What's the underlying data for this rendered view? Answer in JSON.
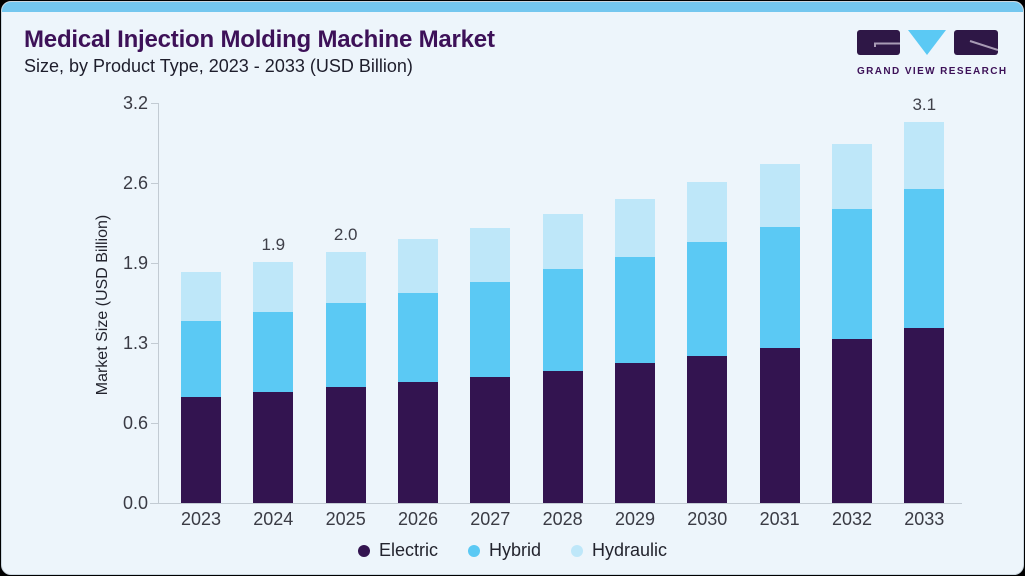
{
  "header": {
    "title": "Medical Injection Molding Machine Market",
    "subtitle": "Size, by Product Type, 2023 - 2033 (USD Billion)"
  },
  "logo": {
    "text": "GRAND VIEW RESEARCH",
    "icon": "gvr-logo-icon",
    "colors": {
      "dark": "#2E1746",
      "blue": "#5BC9F4",
      "line": "#A89BB5"
    }
  },
  "colors": {
    "accent_strip": "#74C7EF",
    "card_bg": "#EDF5FB",
    "axis": "#C2CBD3",
    "text": "#3A3B44"
  },
  "chart_data": {
    "type": "bar",
    "stacked": true,
    "title": "Medical Injection Molding Machine Market",
    "subtitle": "Size, by Product Type, 2023 - 2033 (USD Billion)",
    "xlabel": "",
    "ylabel": "Market Size (USD Billion)",
    "ylim": [
      0,
      3.2
    ],
    "grid": false,
    "legend_position": "bottom",
    "categories": [
      "2023",
      "2024",
      "2025",
      "2026",
      "2027",
      "2028",
      "2029",
      "2030",
      "2031",
      "2032",
      "2033"
    ],
    "series": [
      {
        "name": "Electric",
        "color": "#331450",
        "values": [
          0.85,
          0.89,
          0.93,
          0.97,
          1.01,
          1.06,
          1.12,
          1.18,
          1.24,
          1.31,
          1.4
        ]
      },
      {
        "name": "Hybrid",
        "color": "#5BC9F4",
        "values": [
          0.61,
          0.64,
          0.67,
          0.71,
          0.76,
          0.81,
          0.85,
          0.91,
          0.97,
          1.04,
          1.11
        ]
      },
      {
        "name": "Hydraulic",
        "color": "#BEE7F9",
        "values": [
          0.39,
          0.4,
          0.41,
          0.43,
          0.43,
          0.44,
          0.46,
          0.48,
          0.5,
          0.52,
          0.54
        ]
      }
    ],
    "bar_total_labels": {
      "2024": "1.9",
      "2025": "2.0",
      "2033": "3.1"
    },
    "y_ticks": [
      {
        "value": 0.0,
        "label": "0.0"
      },
      {
        "value": 0.64,
        "label": "0.6"
      },
      {
        "value": 1.28,
        "label": "1.3"
      },
      {
        "value": 1.92,
        "label": "1.9"
      },
      {
        "value": 2.56,
        "label": "2.6"
      },
      {
        "value": 3.2,
        "label": "3.2"
      }
    ]
  }
}
